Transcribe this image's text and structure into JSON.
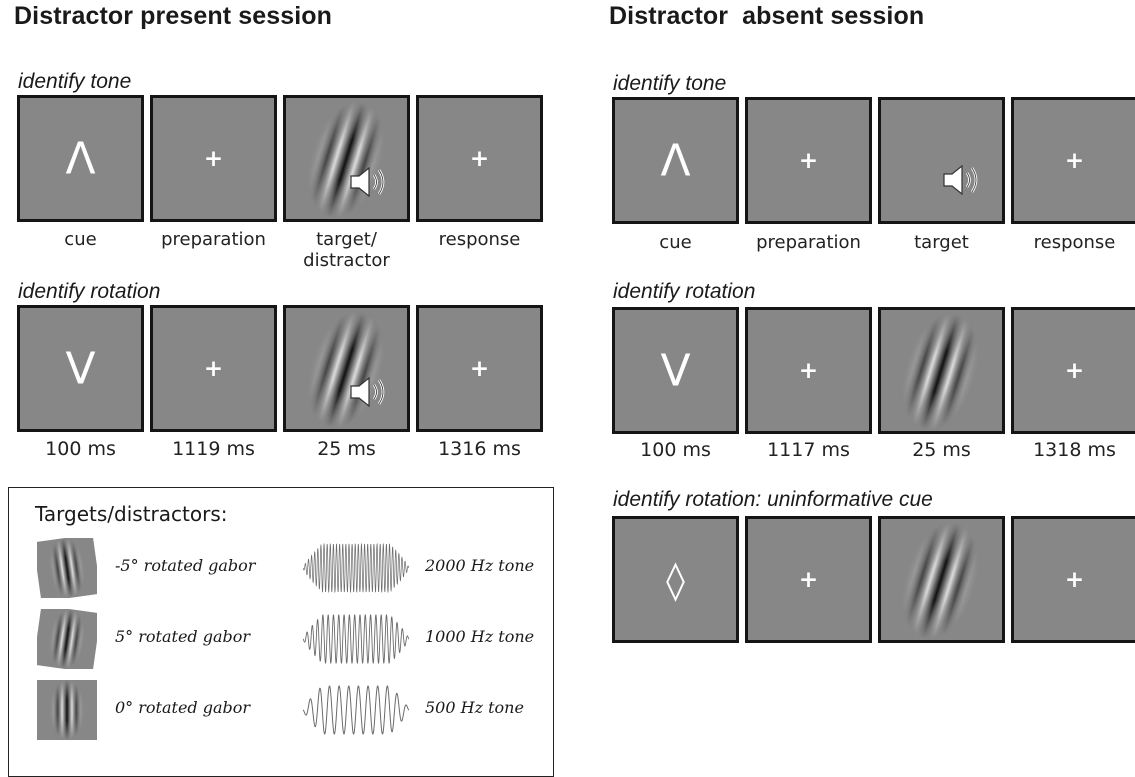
{
  "left": {
    "title": "Distractor present session",
    "tone_condition": {
      "title": "identify tone",
      "cue_symbol": "Λ",
      "fixation": "+",
      "labels": [
        "cue",
        "preparation",
        "target/\ndistractor",
        "response"
      ]
    },
    "rotation_condition": {
      "title": "identify rotation",
      "cue_symbol": "V",
      "fixation": "+",
      "durations": [
        "100 ms",
        "1119 ms",
        "25 ms",
        "1316 ms"
      ]
    },
    "legend": {
      "title": "Targets/distractors:",
      "items": [
        {
          "gabor": "-5° rotated gabor",
          "tone": "2000 Hz tone"
        },
        {
          "gabor": "5° rotated gabor",
          "tone": "1000 Hz tone"
        },
        {
          "gabor": "0° rotated gabor",
          "tone": "500 Hz tone"
        }
      ]
    }
  },
  "right": {
    "title": "Distractor  absent session",
    "tone_condition": {
      "title": "identify tone",
      "cue_symbol": "Λ",
      "fixation": "+",
      "labels": [
        "cue",
        "preparation",
        "target",
        "response"
      ]
    },
    "rotation_condition": {
      "title": "identify rotation",
      "cue_symbol": "V",
      "fixation": "+",
      "durations": [
        "100 ms",
        "1117 ms",
        "25 ms",
        "1318 ms"
      ]
    },
    "uninformative_condition": {
      "title": "identify rotation: uninformative cue",
      "cue_symbol": "◊",
      "fixation": "+"
    }
  },
  "colors": {
    "panel_gray": "#878787",
    "panel_border": "#151515"
  },
  "icons": [
    "speaker-icon",
    "gabor-patch",
    "tone-waveform"
  ]
}
